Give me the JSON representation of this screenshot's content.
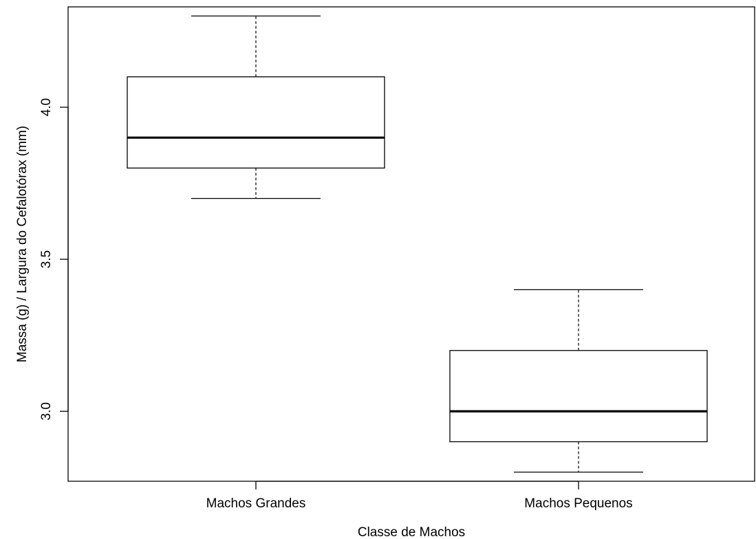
{
  "chart_data": {
    "type": "box",
    "title": "",
    "xlabel": "Classe de Machos",
    "ylabel": "Massa (g) / Largura do Cefalotórax (mm)",
    "categories": [
      "Machos Grandes",
      "Machos Pequenos"
    ],
    "boxes": [
      {
        "category": "Machos Grandes",
        "whisker_low": 3.7,
        "q1": 3.8,
        "median": 3.9,
        "q3": 4.1,
        "whisker_high": 4.3
      },
      {
        "category": "Machos Pequenos",
        "whisker_low": 2.8,
        "q1": 2.9,
        "median": 3.0,
        "q3": 3.2,
        "whisker_high": 3.4
      }
    ],
    "ylim": [
      2.77,
      4.33
    ],
    "yticks": [
      3.0,
      3.5,
      4.0
    ],
    "ytick_labels": [
      "3.0",
      "3.5",
      "4.0"
    ],
    "grid": false,
    "legend": "none"
  }
}
